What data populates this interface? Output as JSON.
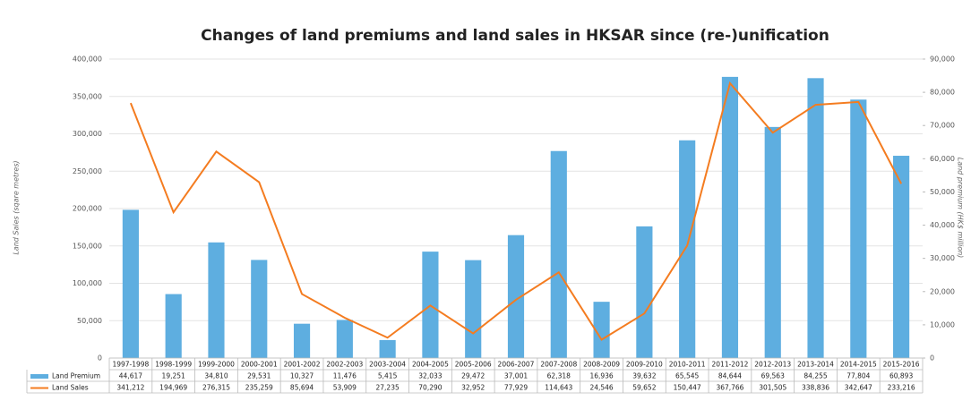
{
  "chart_data": {
    "type": "bar-line",
    "title": "Changes of land premiums and land sales in HKSAR since (re-)unification",
    "y_label": "Land Sales (sqare metres)",
    "y2_label": "Land premium (HK$ million)",
    "categories": [
      "1997-1998",
      "1998-1999",
      "1999-2000",
      "2000-2001",
      "2001-2002",
      "2002-2003",
      "2003-2004",
      "2004-2005",
      "2005-2006",
      "2006-2007",
      "2007-2008",
      "2008-2009",
      "2009-2010",
      "2010-2011",
      "2011-2012",
      "2012-2013",
      "2013-2014",
      "2014-2015",
      "2015-2016"
    ],
    "series": [
      {
        "name": "Land Premium",
        "type": "bar",
        "axis": "y2",
        "color": "#5eaee0",
        "values": [
          44617,
          19251,
          34810,
          29531,
          10327,
          11476,
          5415,
          32033,
          29472,
          37001,
          62318,
          16936,
          39632,
          65545,
          84644,
          69563,
          84255,
          77804,
          60893
        ],
        "value_labels": [
          "44,617",
          "19,251",
          "34,810",
          "29,531",
          "10,327",
          "11,476",
          "5,415",
          "32,033",
          "29,472",
          "37,001",
          "62,318",
          "16,936",
          "39,632",
          "65,545",
          "84,644",
          "69,563",
          "84,255",
          "77,804",
          "60,893"
        ]
      },
      {
        "name": "Land Sales",
        "type": "line",
        "axis": "y",
        "color": "#f47c20",
        "values": [
          341212,
          194969,
          276315,
          235259,
          85694,
          53909,
          27235,
          70290,
          32952,
          77929,
          114643,
          24546,
          59652,
          150447,
          367766,
          301505,
          338836,
          342647,
          233216
        ],
        "value_labels": [
          "341,212",
          "194,969",
          "276,315",
          "235,259",
          "85,694",
          "53,909",
          "27,235",
          "70,290",
          "32,952",
          "77,929",
          "114,643",
          "24,546",
          "59,652",
          "150,447",
          "367,766",
          "301,505",
          "338,836",
          "342,647",
          "233,216"
        ]
      }
    ],
    "ylim": [
      0,
      400000
    ],
    "yticks": [
      0,
      {
        "value": 50000,
        "label": "50,000"
      },
      {
        "value": 100000,
        "label": "100,000"
      },
      {
        "value": 150000,
        "label": "150,000"
      },
      {
        "value": 200000,
        "label": "200,000"
      },
      {
        "value": 250000,
        "label": "250,000"
      },
      {
        "value": 300000,
        "label": "300,000"
      },
      {
        "value": 350000,
        "label": "350,000"
      },
      {
        "value": 400000,
        "label": "400,000"
      }
    ],
    "y2lim": [
      0,
      90000
    ],
    "y2ticks": [
      0,
      {
        "value": 10000,
        "label": "10,000"
      },
      {
        "value": 20000,
        "label": "20,000"
      },
      {
        "value": 30000,
        "label": "30,000"
      },
      {
        "value": 40000,
        "label": "40,000"
      },
      {
        "value": 50000,
        "label": "50,000"
      },
      {
        "value": 60000,
        "label": "60,000"
      },
      {
        "value": 70000,
        "label": "70,000"
      },
      {
        "value": 80000,
        "label": "80,000"
      },
      {
        "value": 90000,
        "label": "90,000"
      }
    ],
    "grid": true
  }
}
